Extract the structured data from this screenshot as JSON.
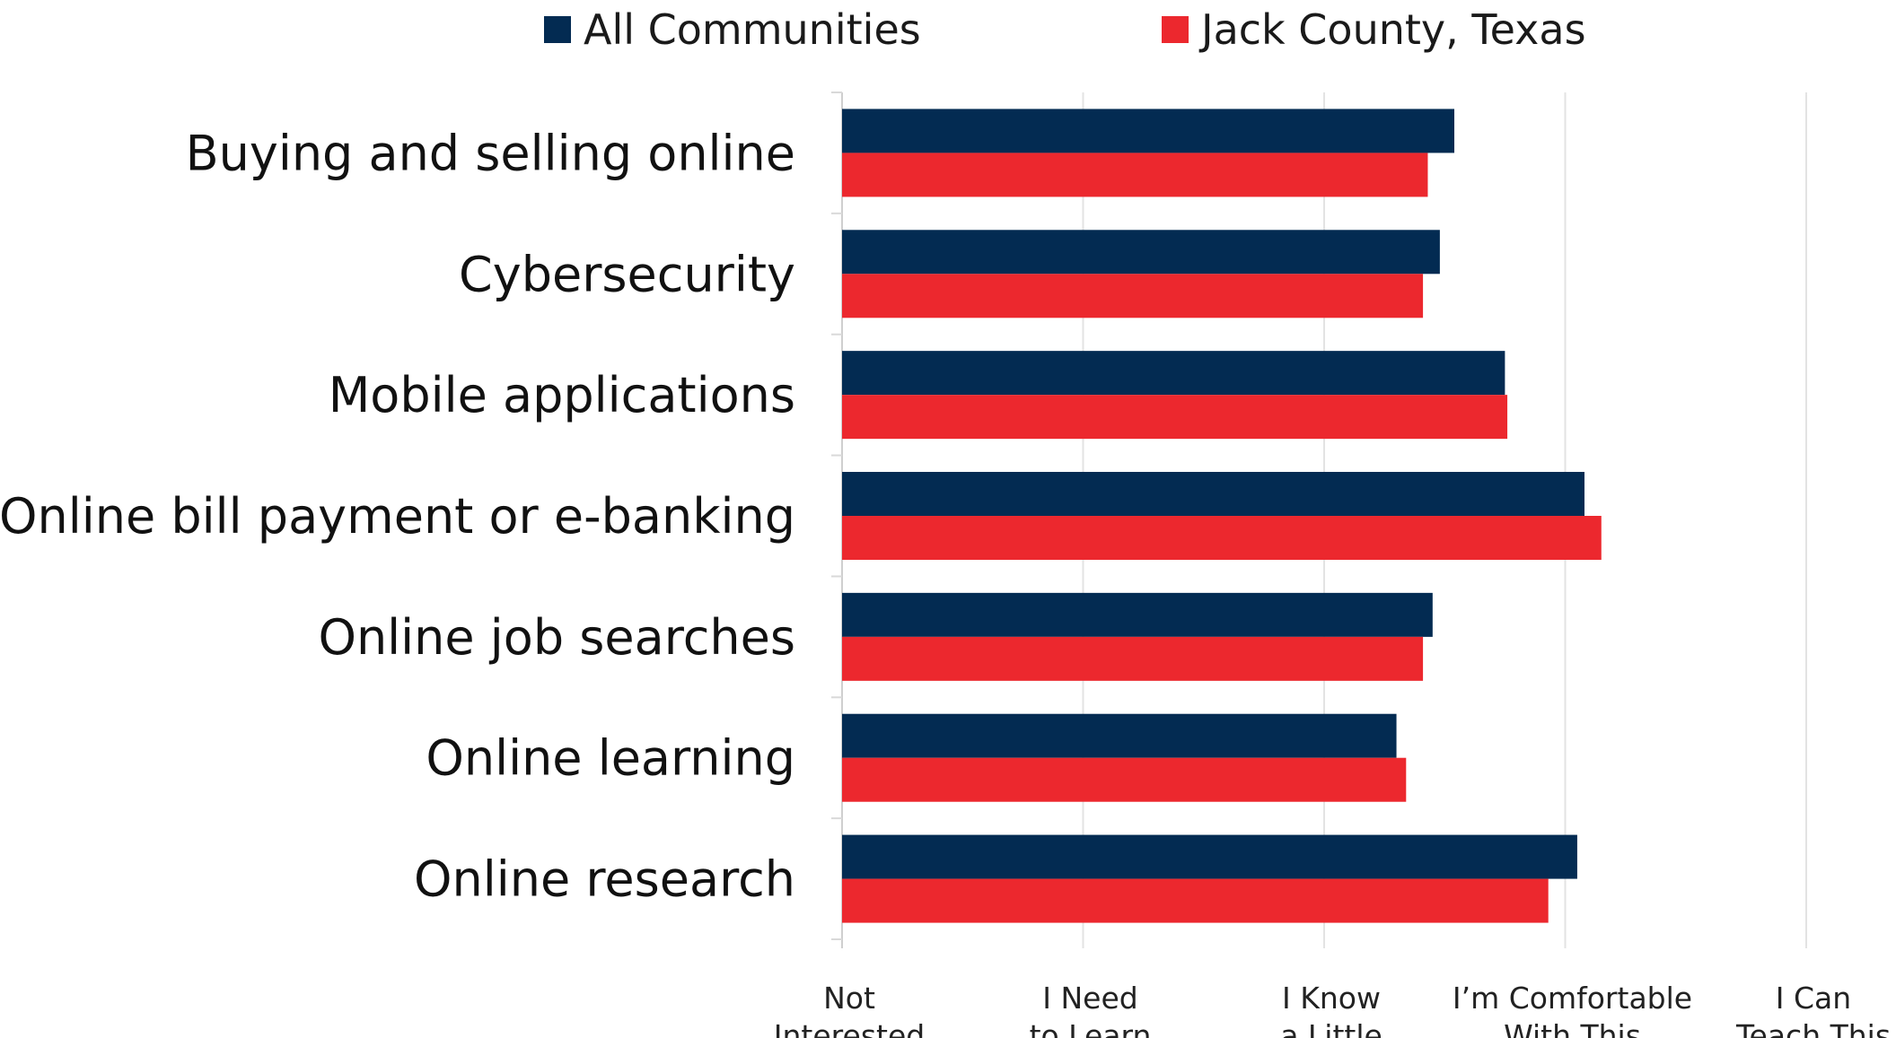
{
  "chart_data": {
    "type": "bar",
    "orientation": "horizontal",
    "title": "",
    "xlabel": "",
    "ylabel": "",
    "categories": [
      "Buying and selling online",
      "Cybersecurity",
      "Mobile applications",
      "Online bill payment or e-banking",
      "Online job searches",
      "Online learning",
      "Online research"
    ],
    "x_ticks": [
      "Not\nInterested",
      "I Need\nto Learn",
      "I Know\na Little",
      "I’m Comfortable\nWith This",
      "I Can\nTeach This"
    ],
    "xlim": [
      0,
      4
    ],
    "grid": "vertical",
    "legend_position": "top",
    "series": [
      {
        "name": "All Communities",
        "color": "#032b52",
        "values": [
          2.54,
          2.48,
          2.75,
          3.08,
          2.45,
          2.3,
          3.05
        ]
      },
      {
        "name": "Jack County, Texas",
        "color": "#ec282e",
        "values": [
          2.43,
          2.41,
          2.76,
          3.15,
          2.41,
          2.34,
          2.93
        ]
      }
    ]
  }
}
